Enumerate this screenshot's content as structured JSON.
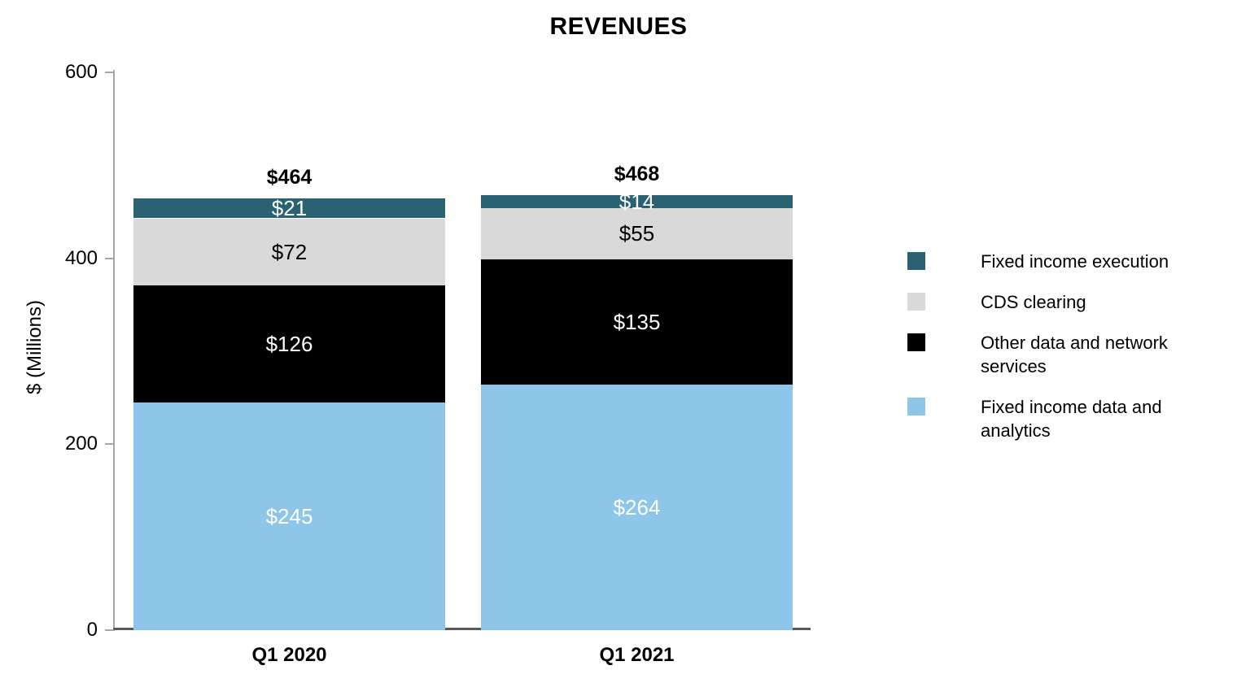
{
  "chart_data": {
    "type": "bar",
    "stacked": true,
    "title": "REVENUES",
    "xlabel": "",
    "ylabel": "$ (Millions)",
    "value_prefix": "$",
    "categories": [
      "Q1 2020",
      "Q1 2021"
    ],
    "totals": [
      464,
      468
    ],
    "series": [
      {
        "name": "Fixed income execution",
        "color": "#2b6273",
        "label_color": "#ffffff",
        "values": [
          21,
          14
        ]
      },
      {
        "name": "CDS clearing",
        "color": "#d9d9d9",
        "label_color": "#000000",
        "values": [
          72,
          55
        ]
      },
      {
        "name": "Other data and network services",
        "color": "#000000",
        "label_color": "#ffffff",
        "values": [
          126,
          135
        ]
      },
      {
        "name": "Fixed income data and analytics",
        "color": "#8dc6e8",
        "label_color": "#ffffff",
        "values": [
          245,
          264
        ]
      }
    ],
    "yticks": [
      0,
      200,
      400,
      600
    ],
    "ylim": [
      0,
      600
    ],
    "grid": false,
    "legend_position": "right",
    "axis_color": "#a6a6a6",
    "baseline_color": "#595959",
    "background_color": "#ffffff"
  }
}
